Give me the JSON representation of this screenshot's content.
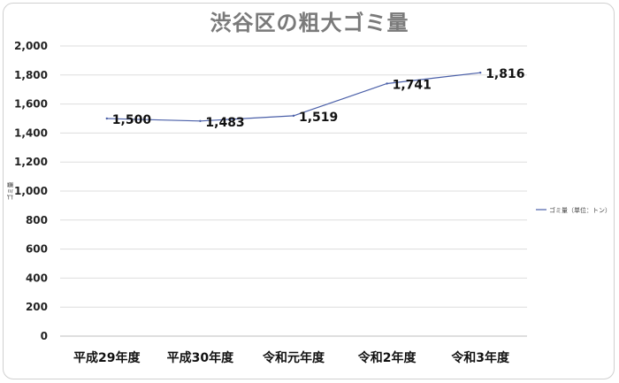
{
  "chart_data": {
    "type": "line",
    "title": "渋谷区の粗大ゴミ量",
    "ylabel": "ゴミ量",
    "xlabel": "",
    "categories": [
      "平成29年度",
      "平成30年度",
      "令和元年度",
      "令和2年度",
      "令和3年度"
    ],
    "series": [
      {
        "name": "ゴミ量（単位：トン）",
        "values": [
          1500,
          1483,
          1519,
          1741,
          1816
        ],
        "color": "#4a5fa8"
      }
    ],
    "data_labels": [
      "1,500",
      "1,483",
      "1,519",
      "1,741",
      "1,816"
    ],
    "ylim": [
      0,
      2000
    ],
    "yticks": [
      "0",
      "200",
      "400",
      "600",
      "800",
      "1,000",
      "1,200",
      "1,400",
      "1,600",
      "1,800",
      "2,000"
    ],
    "grid": true,
    "legend_position": "right"
  }
}
